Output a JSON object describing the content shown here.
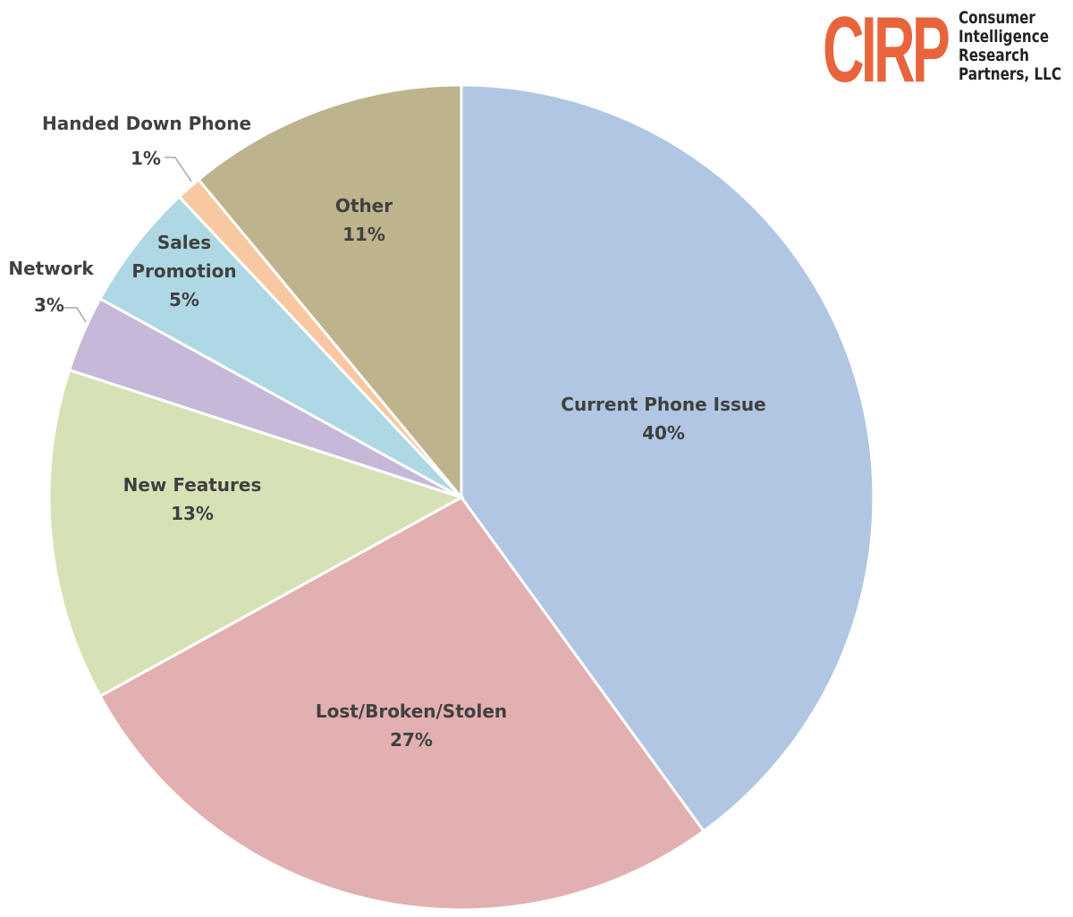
{
  "logo": {
    "mark": "CIRP",
    "name_lines": [
      "Consumer",
      "Intelligence",
      "Research",
      "Partners, LLC"
    ],
    "mark_color": "#e8643c"
  },
  "chart_data": {
    "type": "pie",
    "title": "",
    "slices": [
      {
        "label": "Current Phone Issue",
        "value": 40,
        "value_label": "40%",
        "color": "#b0c6e2"
      },
      {
        "label": "Lost/Broken/Stolen",
        "value": 27,
        "value_label": "27%",
        "color": "#e2b0b0"
      },
      {
        "label": "New Features",
        "value": 13,
        "value_label": "13%",
        "color": "#d6e2b6"
      },
      {
        "label": "Network",
        "value": 3,
        "value_label": "3%",
        "color": "#c6b8d8"
      },
      {
        "label": "Sales Promotion",
        "value": 5,
        "value_label": "5%",
        "color": "#aed8e4"
      },
      {
        "label": "Handed Down Phone",
        "value": 1,
        "value_label": "1%",
        "color": "#f8c8a2"
      },
      {
        "label": "Other",
        "value": 11,
        "value_label": "11%",
        "color": "#bdb38d"
      }
    ],
    "start_angle_deg": 0,
    "direction": "clockwise",
    "legend": "none",
    "label_color": "#404040",
    "slice_border_color": "#ffffff"
  }
}
